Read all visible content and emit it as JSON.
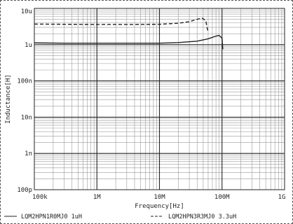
{
  "chart_data": {
    "type": "line",
    "xlabel": "Frequency[Hz]",
    "ylabel": "Inductance[H]",
    "x_scale": "log",
    "y_scale": "log",
    "xlim": [
      100000,
      1000000000
    ],
    "ylim": [
      1e-10,
      1e-05
    ],
    "x_ticks": [
      {
        "value": 100000,
        "label": "100k"
      },
      {
        "value": 1000000,
        "label": "1M"
      },
      {
        "value": 10000000,
        "label": "10M"
      },
      {
        "value": 100000000,
        "label": "100M"
      },
      {
        "value": 1000000000,
        "label": "1G"
      }
    ],
    "y_ticks": [
      {
        "value": 1e-10,
        "label": "100p"
      },
      {
        "value": 1e-09,
        "label": "1n"
      },
      {
        "value": 1e-08,
        "label": "10n"
      },
      {
        "value": 1e-07,
        "label": "100n"
      },
      {
        "value": 1e-06,
        "label": "1u"
      },
      {
        "value": 1e-05,
        "label": "10u"
      }
    ],
    "grid": true,
    "legend_position": "bottom",
    "series": [
      {
        "name": "LQM2HPN1R0MJ0 1uH",
        "style": "solid",
        "color": "#222222",
        "points": [
          [
            100000,
            1.12e-06
          ],
          [
            300000,
            1.1e-06
          ],
          [
            1000000,
            1.1e-06
          ],
          [
            3000000,
            1.1e-06
          ],
          [
            10000000,
            1.1e-06
          ],
          [
            20000000,
            1.14e-06
          ],
          [
            40000000,
            1.25e-06
          ],
          [
            60000000,
            1.45e-06
          ],
          [
            80000000,
            1.72e-06
          ],
          [
            90000000,
            1.8e-06
          ],
          [
            100000000,
            1.5e-06
          ],
          [
            103000000,
            7.5e-07
          ]
        ]
      },
      {
        "name": "LQM2HPN3R3MJ0 3.3uH",
        "style": "dashed",
        "color": "#222222",
        "points": [
          [
            100000,
            3.7e-06
          ],
          [
            300000,
            3.65e-06
          ],
          [
            1000000,
            3.6e-06
          ],
          [
            3000000,
            3.6e-06
          ],
          [
            10000000,
            3.65e-06
          ],
          [
            20000000,
            3.9e-06
          ],
          [
            30000000,
            4.3e-06
          ],
          [
            40000000,
            5e-06
          ],
          [
            48000000,
            5.4e-06
          ],
          [
            55000000,
            4.6e-06
          ],
          [
            58000000,
            2.8e-06
          ],
          [
            60000000,
            2.2e-06
          ]
        ]
      }
    ]
  }
}
